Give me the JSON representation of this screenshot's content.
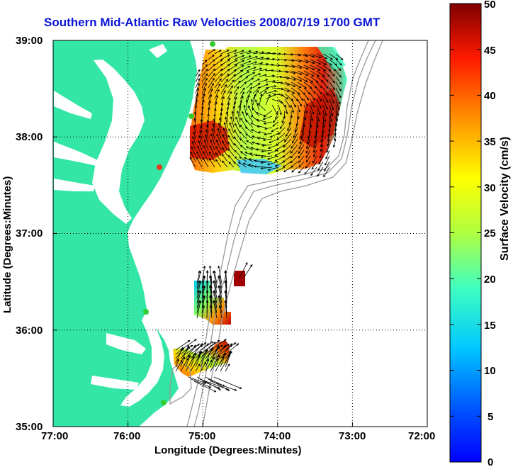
{
  "title": "Southern Mid-Atlantic Raw Velocities 2008/07/19 1700 GMT",
  "x_axis": {
    "label": "Longitude (Degrees:Minutes)",
    "ticks": [
      "77:00",
      "76:00",
      "75:00",
      "74:00",
      "73:00",
      "72:00"
    ]
  },
  "y_axis": {
    "label": "Latitude (Degrees:Minutes)",
    "ticks": [
      "39:00",
      "38:00",
      "37:00",
      "36:00",
      "35:00"
    ]
  },
  "colorbar": {
    "label": "Surface Velocity (cm/s)",
    "ticks": [
      "50",
      "45",
      "40",
      "35",
      "30",
      "25",
      "20",
      "15",
      "10",
      "5",
      "0"
    ],
    "min": 0,
    "max": 50
  },
  "colors": {
    "land": "#33e6a6",
    "title": "#0a14d6",
    "station_marker": "#33cc33",
    "station_marker_alt": "#e33b1f"
  },
  "map": {
    "lon_range": [
      -77,
      -72
    ],
    "lat_range": [
      35,
      39
    ],
    "grid": "dotted"
  }
}
